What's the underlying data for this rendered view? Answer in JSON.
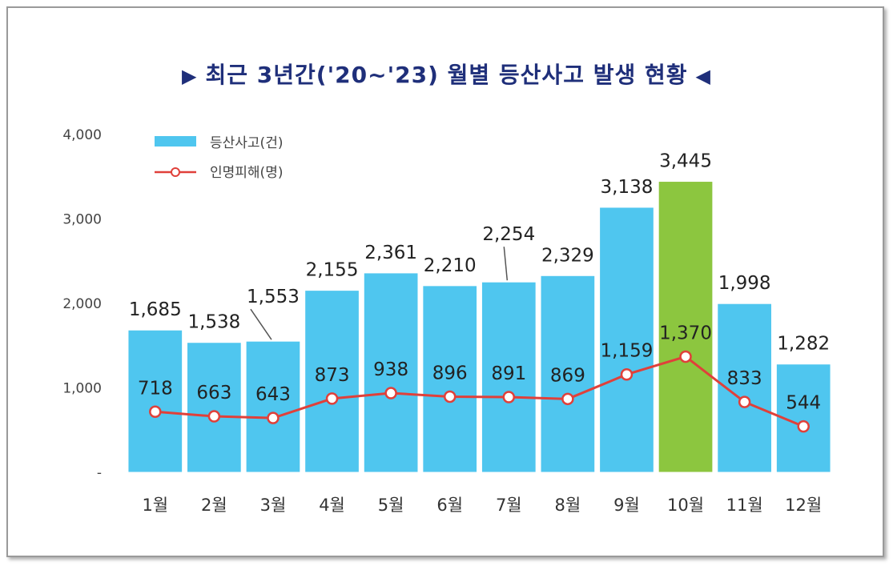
{
  "chart_data": {
    "type": "bar",
    "title": "최근 3년간('20~'23) 월별 등산사고 발생 현황",
    "title_markers": {
      "left": "▶",
      "right": "◀"
    },
    "categories": [
      "1월",
      "2월",
      "3월",
      "4월",
      "5월",
      "6월",
      "7월",
      "8월",
      "9월",
      "10월",
      "11월",
      "12월"
    ],
    "ylim": [
      0,
      4000
    ],
    "yticks": [
      "-",
      "1,000",
      "2,000",
      "3,000",
      "4,000"
    ],
    "grid": false,
    "legend_position": "top-left",
    "series": [
      {
        "name": "등산사고(건)",
        "kind": "bar",
        "color": "#4fc6ef",
        "highlight_color": "#8cc63f",
        "highlight_index": 9,
        "values": [
          1685,
          1538,
          1553,
          2155,
          2361,
          2210,
          2254,
          2329,
          3138,
          3445,
          1998,
          1282
        ],
        "labels": [
          "1,685",
          "1,538",
          "1,553",
          "2,155",
          "2,361",
          "2,210",
          "2,254",
          "2,329",
          "3,138",
          "3,445",
          "1,998",
          "1,282"
        ]
      },
      {
        "name": "인명피해(명)",
        "kind": "line",
        "color": "#e0403a",
        "values": [
          718,
          663,
          643,
          873,
          938,
          896,
          891,
          869,
          1159,
          1370,
          833,
          544
        ],
        "labels": [
          "718",
          "663",
          "643",
          "873",
          "938",
          "896",
          "891",
          "869",
          "1,159",
          "1,370",
          "833",
          "544"
        ]
      }
    ]
  }
}
